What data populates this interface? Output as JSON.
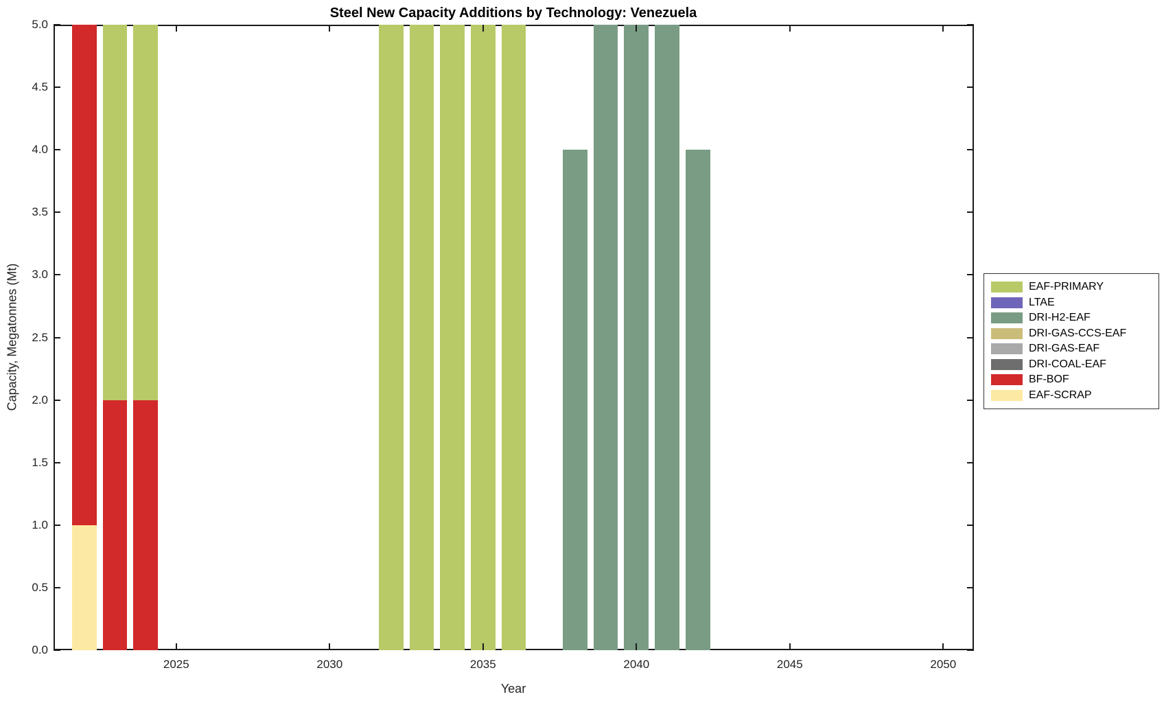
{
  "chart_data": {
    "type": "bar",
    "stacked": true,
    "title": "Steel New Capacity Additions by Technology: Venezuela",
    "xlabel": "Year",
    "ylabel": "Capacity, Megatonnes (Mt)",
    "xlim": [
      2021,
      2051
    ],
    "ylim": [
      0,
      5
    ],
    "xticks": [
      2025,
      2030,
      2035,
      2040,
      2045,
      2050
    ],
    "yticks": [
      0,
      0.5,
      1,
      1.5,
      2,
      2.5,
      3,
      3.5,
      4,
      4.5,
      5
    ],
    "ytick_labels": [
      "0.0",
      "0.5",
      "1.0",
      "1.5",
      "2.0",
      "2.5",
      "3.0",
      "3.5",
      "4.0",
      "4.5",
      "5.0"
    ],
    "bar_width_years": 0.8,
    "grid": false,
    "bars_clipped_at_ymax": true,
    "legend_position": "right-outside",
    "legend": [
      {
        "name": "EAF-PRIMARY",
        "color": "#b8c968"
      },
      {
        "name": "LTAE",
        "color": "#7066b9"
      },
      {
        "name": "DRI-H2-EAF",
        "color": "#7a9c85"
      },
      {
        "name": "DRI-GAS-CCS-EAF",
        "color": "#cabd7a"
      },
      {
        "name": "DRI-GAS-EAF",
        "color": "#a9a9a9"
      },
      {
        "name": "DRI-COAL-EAF",
        "color": "#6e6e6e"
      },
      {
        "name": "BF-BOF",
        "color": "#d2292a"
      },
      {
        "name": "EAF-SCRAP",
        "color": "#fce9a3"
      }
    ],
    "bars": [
      {
        "year": 2022,
        "stack": [
          [
            "EAF-SCRAP",
            1
          ],
          [
            "BF-BOF",
            4
          ]
        ]
      },
      {
        "year": 2023,
        "stack": [
          [
            "BF-BOF",
            2
          ],
          [
            "EAF-PRIMARY",
            3
          ]
        ]
      },
      {
        "year": 2024,
        "stack": [
          [
            "BF-BOF",
            2
          ],
          [
            "EAF-PRIMARY",
            3
          ]
        ]
      },
      {
        "year": 2032,
        "stack": [
          [
            "EAF-PRIMARY",
            5
          ]
        ]
      },
      {
        "year": 2033,
        "stack": [
          [
            "EAF-PRIMARY",
            5
          ]
        ]
      },
      {
        "year": 2034,
        "stack": [
          [
            "EAF-PRIMARY",
            5
          ]
        ]
      },
      {
        "year": 2035,
        "stack": [
          [
            "EAF-PRIMARY",
            5
          ]
        ]
      },
      {
        "year": 2036,
        "stack": [
          [
            "EAF-PRIMARY",
            5
          ]
        ]
      },
      {
        "year": 2038,
        "stack": [
          [
            "DRI-H2-EAF",
            4
          ]
        ]
      },
      {
        "year": 2039,
        "stack": [
          [
            "DRI-H2-EAF",
            5
          ]
        ]
      },
      {
        "year": 2040,
        "stack": [
          [
            "DRI-H2-EAF",
            5
          ]
        ]
      },
      {
        "year": 2041,
        "stack": [
          [
            "DRI-H2-EAF",
            5
          ]
        ]
      },
      {
        "year": 2042,
        "stack": [
          [
            "DRI-H2-EAF",
            4
          ]
        ]
      }
    ]
  }
}
